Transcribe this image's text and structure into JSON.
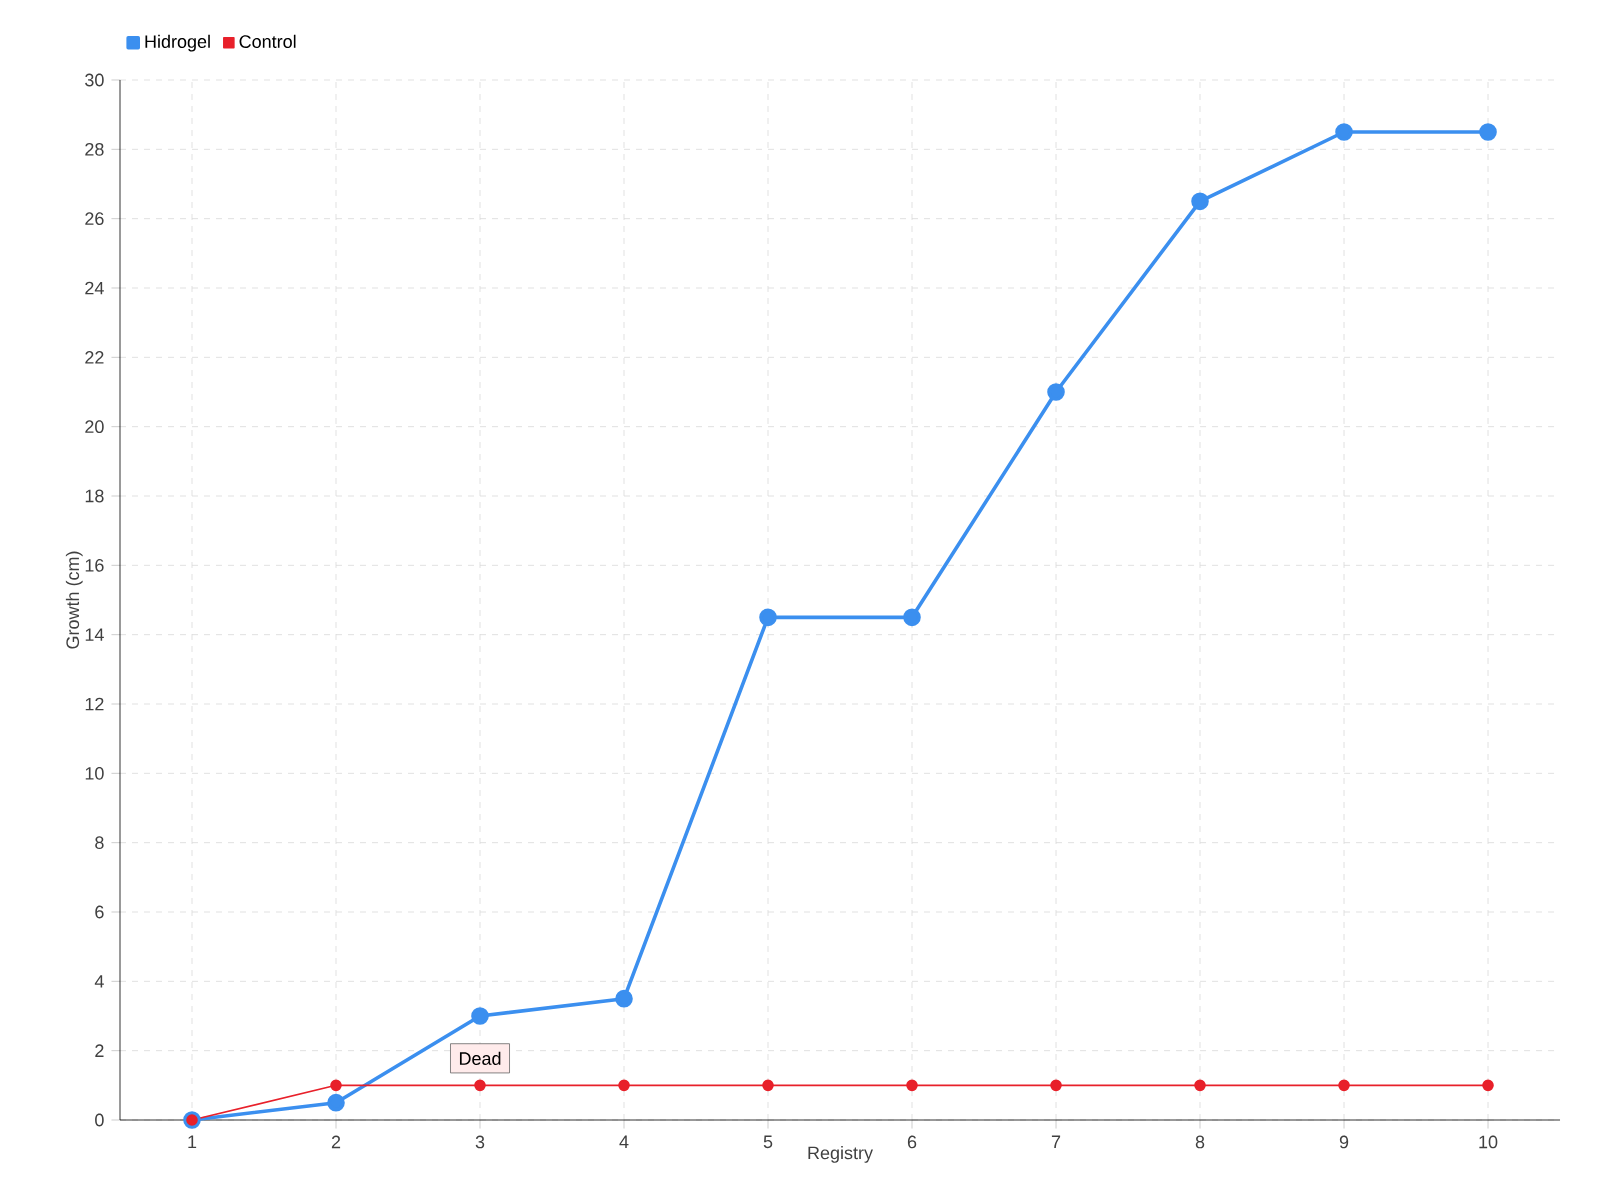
{
  "chart_data": {
    "type": "line",
    "xlabel": "Registry",
    "ylabel": "Growth (cm)",
    "x": [
      1,
      2,
      3,
      4,
      5,
      6,
      7,
      8,
      9,
      10
    ],
    "series": [
      {
        "name": "Hidrogel",
        "color": "#3b8fef",
        "values": [
          0,
          0.5,
          3,
          3.5,
          14.5,
          14.5,
          21,
          26.5,
          28.5,
          28.5
        ]
      },
      {
        "name": "Control",
        "color": "#e8202a",
        "values": [
          0,
          1,
          1,
          1,
          1,
          1,
          1,
          1,
          1,
          1
        ]
      }
    ],
    "xlim": [
      0.5,
      10.5
    ],
    "ylim": [
      0,
      30
    ],
    "xticks": [
      1,
      2,
      3,
      4,
      5,
      6,
      7,
      8,
      9,
      10
    ],
    "yticks": [
      0,
      2,
      4,
      6,
      8,
      10,
      12,
      14,
      16,
      18,
      20,
      22,
      24,
      26,
      28,
      30
    ],
    "grid": true,
    "legend": "top left",
    "marker": "circle",
    "line_style": "solid",
    "annotations": [
      {
        "text": "Dead",
        "x": 3,
        "y": 1
      }
    ]
  }
}
